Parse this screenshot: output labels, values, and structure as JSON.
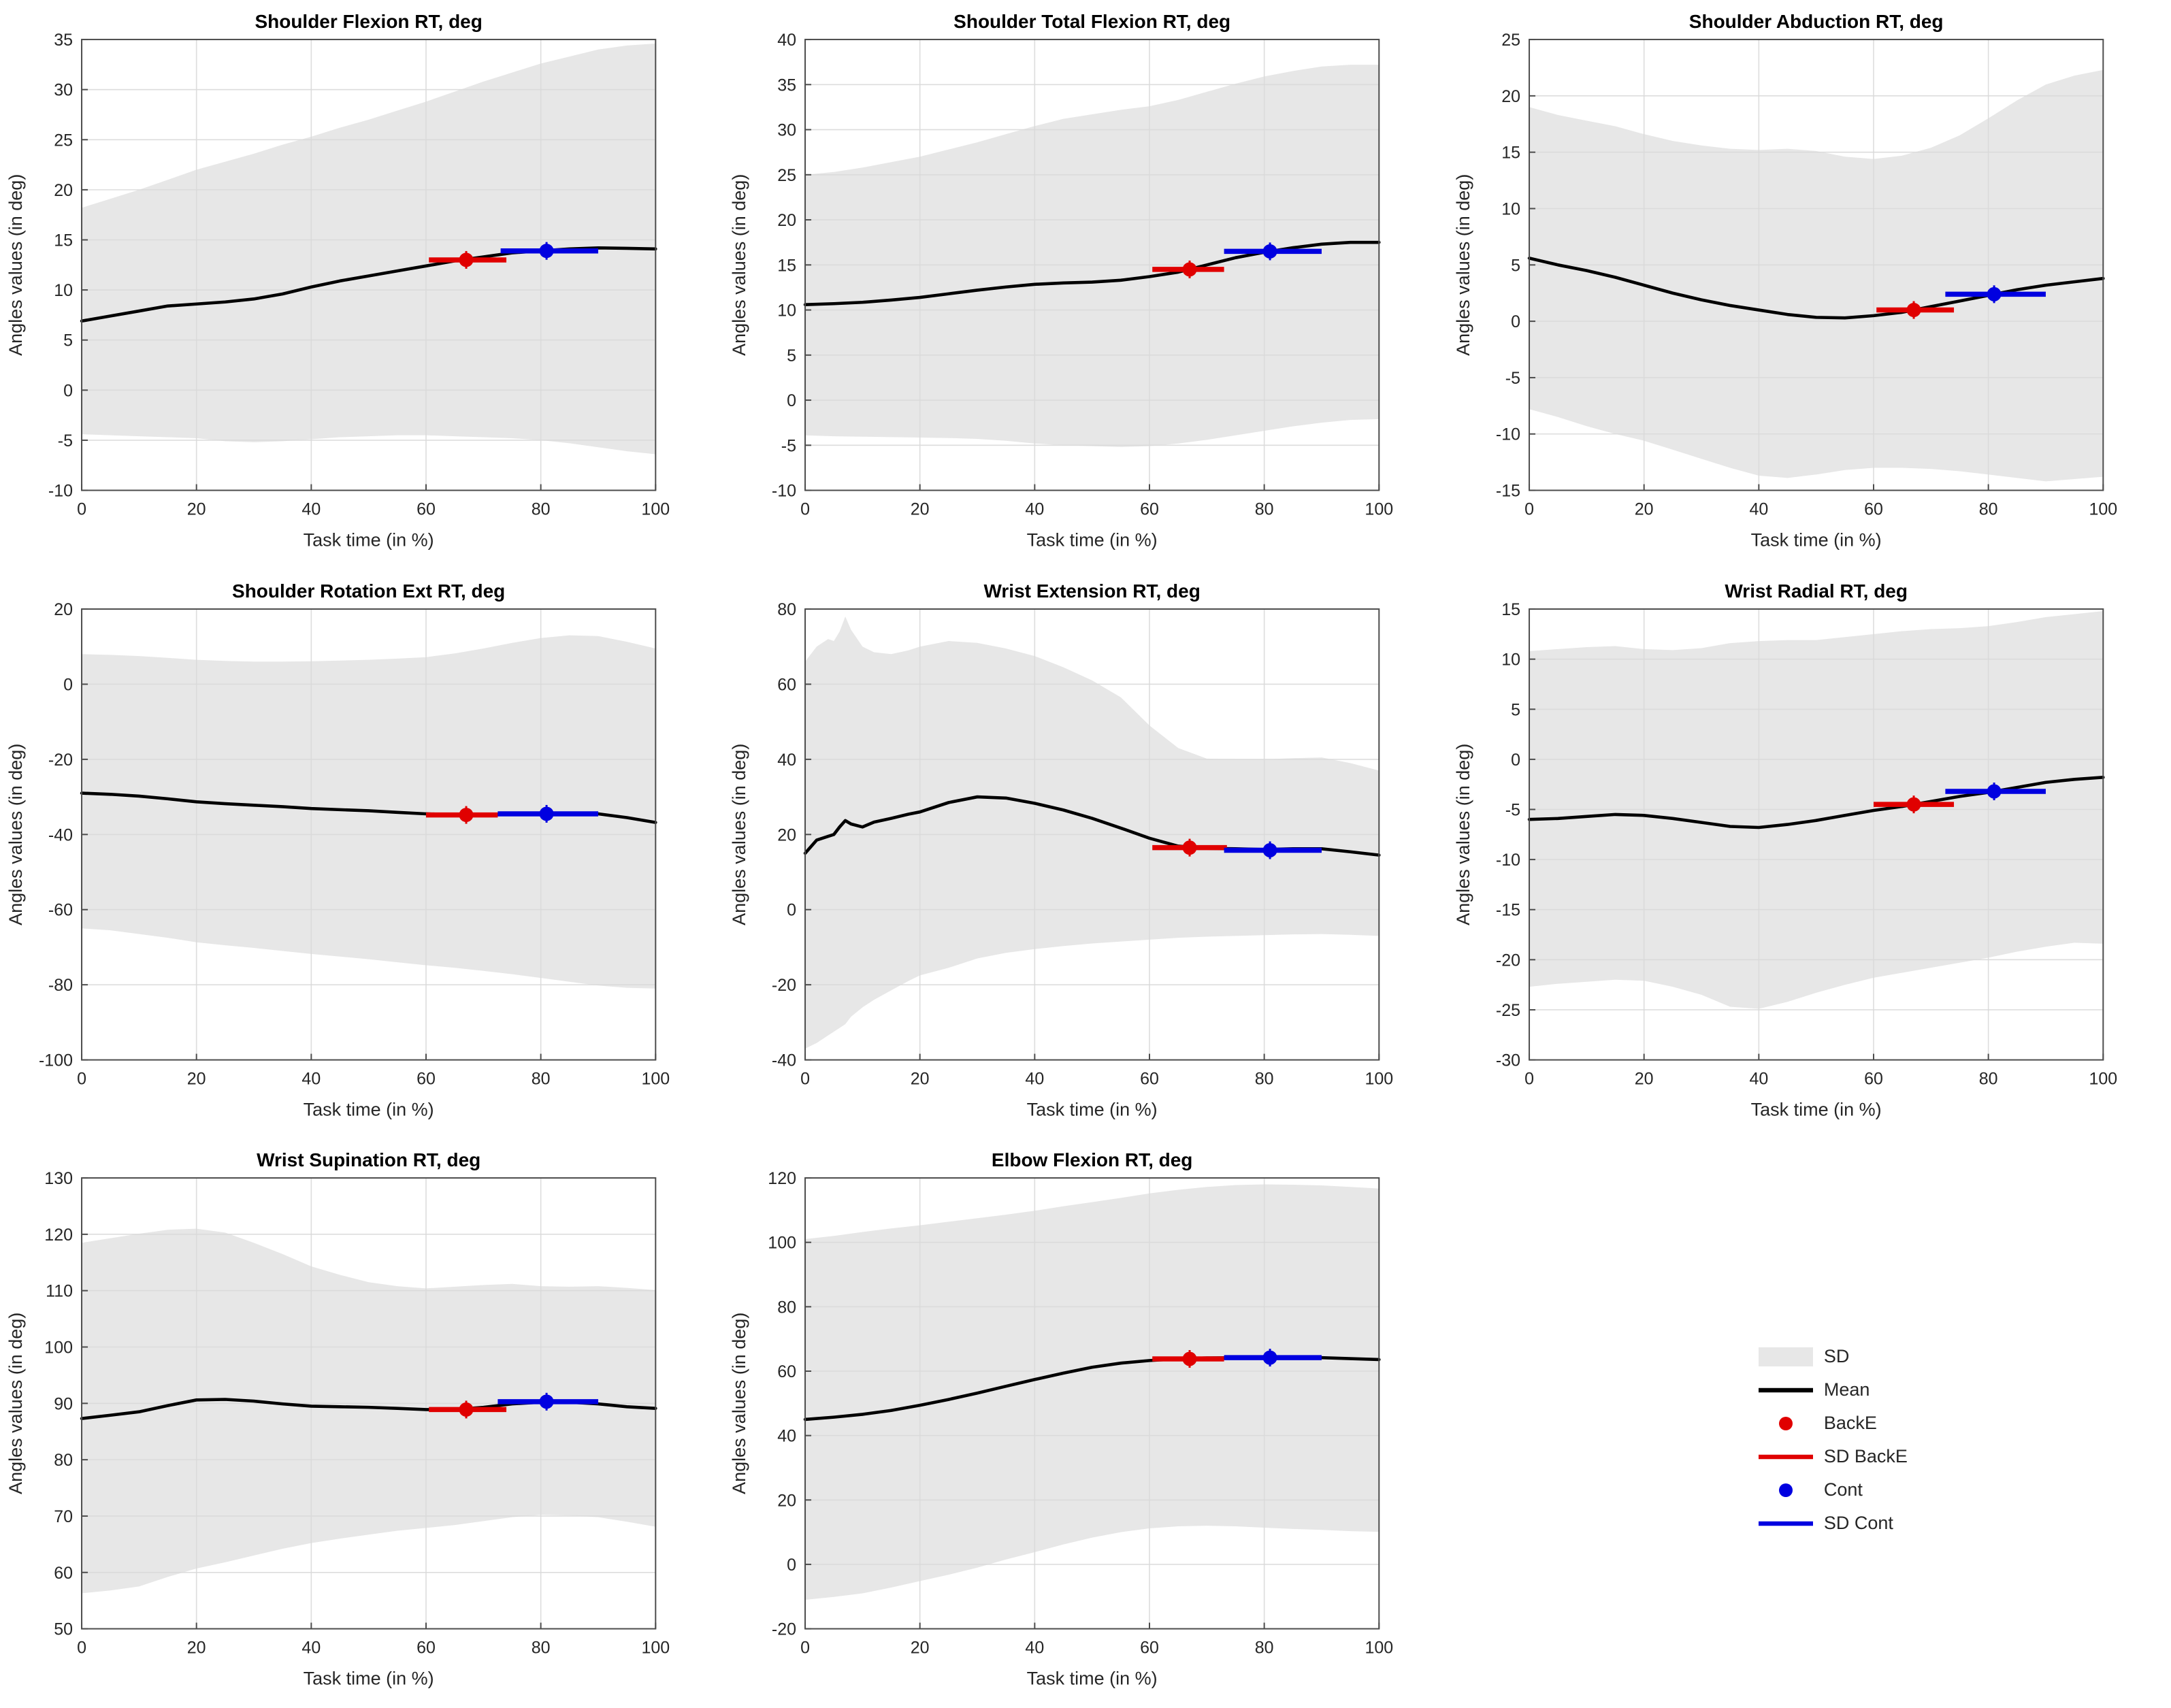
{
  "figure": {
    "background": "#ffffff"
  },
  "colors": {
    "band": "#e7e7e7",
    "mean": "#000000",
    "backe": "#e00000",
    "cont": "#0000e0",
    "grid": "#d9d9d9",
    "frame": "#4d4d4d",
    "text": "#262626"
  },
  "legend": {
    "items": [
      {
        "label": "SD",
        "swatch": "band"
      },
      {
        "label": "Mean",
        "swatch": "line",
        "color": "#000000"
      },
      {
        "label": "BackE",
        "swatch": "dot",
        "color": "#e00000"
      },
      {
        "label": "SD BackE",
        "swatch": "line",
        "color": "#e00000"
      },
      {
        "label": "Cont",
        "swatch": "dot",
        "color": "#0000e0"
      },
      {
        "label": "SD Cont",
        "swatch": "line",
        "color": "#0000e0"
      }
    ]
  },
  "chart_data": {
    "type": "line",
    "xlabel": "Task time (in %)",
    "ylabel": "Angles values (in deg)",
    "xlim": [
      0,
      100
    ],
    "xticks": [
      0,
      20,
      40,
      60,
      80,
      100
    ],
    "grid": true,
    "legend_entries": [
      "SD",
      "Mean",
      "BackE",
      "SD BackE",
      "Cont",
      "SD Cont"
    ],
    "plots": [
      {
        "title": "Shoulder Flexion RT, deg",
        "ylim": [
          -10,
          35
        ],
        "yticks": [
          -10,
          -5,
          0,
          5,
          10,
          15,
          20,
          25,
          30,
          35
        ],
        "x": [
          0,
          5,
          10,
          15,
          20,
          25,
          30,
          35,
          40,
          45,
          50,
          55,
          60,
          65,
          70,
          75,
          80,
          85,
          90,
          95,
          100
        ],
        "mean": [
          6.9,
          7.4,
          7.9,
          8.4,
          8.6,
          8.8,
          9.1,
          9.6,
          10.3,
          10.9,
          11.4,
          11.9,
          12.4,
          12.9,
          13.3,
          13.7,
          13.9,
          14.1,
          14.2,
          14.15,
          14.1
        ],
        "upper": [
          18.2,
          19.1,
          20,
          21,
          22,
          22.8,
          23.6,
          24.5,
          25.3,
          26.2,
          27,
          27.9,
          28.8,
          29.8,
          30.8,
          31.7,
          32.6,
          33.3,
          34,
          34.4,
          34.6
        ],
        "lower": [
          -4.4,
          -4.5,
          -4.6,
          -4.7,
          -4.8,
          -5.1,
          -5.2,
          -5.1,
          -4.9,
          -4.7,
          -4.6,
          -4.5,
          -4.5,
          -4.6,
          -4.7,
          -4.8,
          -5.0,
          -5.3,
          -5.7,
          -6.1,
          -6.4
        ],
        "backe": {
          "x": 67,
          "y": 13.0,
          "sd": [
            60.5,
            74
          ]
        },
        "cont": {
          "x": 81,
          "y": 13.9,
          "sd": [
            73,
            90
          ]
        }
      },
      {
        "title": "Shoulder Total Flexion RT, deg",
        "ylim": [
          -10,
          40
        ],
        "yticks": [
          -10,
          -5,
          0,
          5,
          10,
          15,
          20,
          25,
          30,
          35,
          40
        ],
        "x": [
          0,
          5,
          10,
          15,
          20,
          25,
          30,
          35,
          40,
          45,
          50,
          55,
          60,
          65,
          70,
          75,
          80,
          85,
          90,
          95,
          100
        ],
        "mean": [
          10.6,
          10.7,
          10.85,
          11.1,
          11.4,
          11.8,
          12.2,
          12.55,
          12.85,
          13.0,
          13.1,
          13.3,
          13.7,
          14.2,
          15.0,
          15.8,
          16.4,
          16.9,
          17.3,
          17.5,
          17.5
        ],
        "upper": [
          25,
          25.3,
          25.8,
          26.4,
          27,
          27.8,
          28.6,
          29.5,
          30.4,
          31.2,
          31.7,
          32.2,
          32.6,
          33.3,
          34.2,
          35.1,
          35.9,
          36.5,
          37,
          37.2,
          37.2
        ],
        "lower": [
          -3.9,
          -4.0,
          -4.05,
          -4.1,
          -4.15,
          -4.2,
          -4.3,
          -4.5,
          -4.8,
          -5.0,
          -5.1,
          -5.2,
          -5.1,
          -4.8,
          -4.4,
          -3.9,
          -3.4,
          -2.9,
          -2.5,
          -2.2,
          -2.1
        ],
        "backe": {
          "x": 67,
          "y": 14.5,
          "sd": [
            60.5,
            73
          ]
        },
        "cont": {
          "x": 81,
          "y": 16.5,
          "sd": [
            73,
            90
          ]
        }
      },
      {
        "title": "Shoulder Abduction RT, deg",
        "ylim": [
          -15,
          25
        ],
        "yticks": [
          -15,
          -10,
          -5,
          0,
          5,
          10,
          15,
          20,
          25
        ],
        "x": [
          0,
          5,
          10,
          15,
          20,
          25,
          30,
          35,
          40,
          45,
          50,
          55,
          60,
          65,
          70,
          75,
          80,
          85,
          90,
          95,
          100
        ],
        "mean": [
          5.6,
          5.0,
          4.5,
          3.9,
          3.2,
          2.5,
          1.9,
          1.4,
          1.0,
          0.6,
          0.35,
          0.3,
          0.5,
          0.8,
          1.3,
          1.8,
          2.3,
          2.8,
          3.2,
          3.5,
          3.8
        ],
        "upper": [
          19,
          18.3,
          17.8,
          17.3,
          16.6,
          16,
          15.6,
          15.3,
          15.2,
          15.3,
          15.1,
          14.6,
          14.4,
          14.7,
          15.4,
          16.5,
          18,
          19.6,
          21,
          21.8,
          22.3
        ],
        "lower": [
          -7.8,
          -8.5,
          -9.3,
          -10,
          -10.6,
          -11.4,
          -12.2,
          -13,
          -13.7,
          -13.9,
          -13.6,
          -13.2,
          -13.0,
          -13.0,
          -13.1,
          -13.3,
          -13.6,
          -13.9,
          -14.2,
          -14.0,
          -13.8
        ],
        "backe": {
          "x": 67,
          "y": 1.0,
          "sd": [
            60.5,
            74
          ]
        },
        "cont": {
          "x": 81,
          "y": 2.4,
          "sd": [
            72.5,
            90
          ]
        }
      },
      {
        "title": "Shoulder Rotation Ext RT, deg",
        "ylim": [
          -100,
          20
        ],
        "yticks": [
          -100,
          -80,
          -60,
          -40,
          -20,
          0,
          20
        ],
        "x": [
          0,
          5,
          10,
          15,
          20,
          25,
          30,
          35,
          40,
          45,
          50,
          55,
          60,
          65,
          70,
          75,
          80,
          85,
          90,
          95,
          100
        ],
        "mean": [
          -29,
          -29.3,
          -29.8,
          -30.5,
          -31.3,
          -31.8,
          -32.2,
          -32.6,
          -33.1,
          -33.4,
          -33.7,
          -34.1,
          -34.5,
          -34.7,
          -34.7,
          -34.6,
          -34.5,
          -34.4,
          -34.5,
          -35.5,
          -36.8
        ],
        "upper": [
          8,
          7.8,
          7.5,
          7,
          6.5,
          6.2,
          6,
          6,
          6.1,
          6.3,
          6.5,
          6.8,
          7.2,
          8.2,
          9.5,
          11,
          12.3,
          13,
          12.8,
          11.3,
          9.5
        ],
        "lower": [
          -65,
          -65.5,
          -66.5,
          -67.5,
          -68.7,
          -69.5,
          -70.2,
          -71,
          -71.8,
          -72.5,
          -73.2,
          -74,
          -74.8,
          -75.5,
          -76.3,
          -77.2,
          -78.2,
          -79.2,
          -80.2,
          -80.8,
          -81
        ],
        "backe": {
          "x": 67,
          "y": -34.8,
          "sd": [
            60,
            72.5
          ]
        },
        "cont": {
          "x": 81,
          "y": -34.5,
          "sd": [
            72.5,
            90
          ]
        }
      },
      {
        "title": "Wrist Extension RT, deg",
        "ylim": [
          -40,
          80
        ],
        "yticks": [
          -40,
          -20,
          0,
          20,
          40,
          60,
          80
        ],
        "x": [
          0,
          2,
          4,
          5,
          6,
          7,
          8,
          10,
          12,
          15,
          18,
          20,
          25,
          30,
          35,
          40,
          45,
          50,
          55,
          60,
          65,
          70,
          75,
          80,
          85,
          90,
          95,
          100
        ],
        "mean": [
          15,
          18.5,
          19.5,
          20,
          22,
          23.7,
          22.8,
          22,
          23.3,
          24.3,
          25.4,
          26,
          28.5,
          30,
          29.7,
          28.3,
          26.5,
          24.3,
          21.7,
          19,
          16.9,
          16.3,
          16.2,
          16.0,
          16.2,
          16.2,
          15.4,
          14.5
        ],
        "upper": [
          66,
          70,
          72,
          71.5,
          74,
          78,
          74.5,
          70,
          68.5,
          68,
          69,
          70,
          71.5,
          71,
          69.5,
          67.5,
          64.5,
          61,
          56.5,
          49,
          43,
          40.2,
          40,
          40,
          40.3,
          40.5,
          39,
          37
        ],
        "lower": [
          -37,
          -35.5,
          -33.5,
          -32.5,
          -31.5,
          -30.5,
          -28.5,
          -26,
          -24,
          -21.5,
          -19,
          -17.5,
          -15.5,
          -13,
          -11.5,
          -10.5,
          -9.7,
          -9,
          -8.5,
          -8,
          -7.5,
          -7.2,
          -7,
          -6.8,
          -6.6,
          -6.5,
          -6.7,
          -7
        ],
        "backe": {
          "x": 67,
          "y": 16.5,
          "sd": [
            60.5,
            73.5
          ]
        },
        "cont": {
          "x": 81,
          "y": 15.8,
          "sd": [
            73,
            90
          ]
        }
      },
      {
        "title": "Wrist Radial RT, deg",
        "ylim": [
          -30,
          15
        ],
        "yticks": [
          -30,
          -25,
          -20,
          -15,
          -10,
          -5,
          0,
          5,
          10,
          15
        ],
        "x": [
          0,
          5,
          10,
          15,
          20,
          25,
          30,
          35,
          40,
          45,
          50,
          55,
          60,
          65,
          70,
          75,
          80,
          85,
          90,
          95,
          100
        ],
        "mean": [
          -6.0,
          -5.9,
          -5.7,
          -5.5,
          -5.6,
          -5.9,
          -6.3,
          -6.7,
          -6.8,
          -6.5,
          -6.1,
          -5.6,
          -5.1,
          -4.7,
          -4.2,
          -3.7,
          -3.3,
          -2.8,
          -2.3,
          -2.0,
          -1.8
        ],
        "upper": [
          10.8,
          11.0,
          11.2,
          11.3,
          11.0,
          10.9,
          11.1,
          11.6,
          11.8,
          11.9,
          11.9,
          12.2,
          12.5,
          12.8,
          13.0,
          13.1,
          13.3,
          13.7,
          14.2,
          14.5,
          14.8
        ],
        "lower": [
          -22.7,
          -22.4,
          -22.2,
          -22.0,
          -22.1,
          -22.7,
          -23.5,
          -24.7,
          -24.9,
          -24.2,
          -23.3,
          -22.5,
          -21.8,
          -21.3,
          -20.8,
          -20.3,
          -19.8,
          -19.2,
          -18.7,
          -18.3,
          -18.4
        ],
        "backe": {
          "x": 67,
          "y": -4.5,
          "sd": [
            60,
            74
          ]
        },
        "cont": {
          "x": 81,
          "y": -3.2,
          "sd": [
            72.5,
            90
          ]
        }
      },
      {
        "title": "Wrist Supination RT, deg",
        "ylim": [
          50,
          130
        ],
        "yticks": [
          50,
          60,
          70,
          80,
          90,
          100,
          110,
          120,
          130
        ],
        "x": [
          0,
          5,
          10,
          15,
          20,
          25,
          30,
          35,
          40,
          45,
          50,
          55,
          60,
          65,
          70,
          75,
          80,
          85,
          90,
          95,
          100
        ],
        "mean": [
          87.3,
          87.9,
          88.5,
          89.6,
          90.6,
          90.7,
          90.4,
          89.9,
          89.5,
          89.4,
          89.3,
          89.1,
          88.9,
          88.9,
          89.3,
          89.9,
          90.2,
          90.2,
          89.9,
          89.4,
          89.1
        ],
        "upper": [
          118.5,
          119.3,
          120.1,
          120.8,
          121,
          120.3,
          118.5,
          116.5,
          114.3,
          112.8,
          111.5,
          110.8,
          110.4,
          110.7,
          111,
          111.2,
          110.8,
          110.7,
          110.8,
          110.5,
          110.1
        ],
        "lower": [
          56.3,
          56.8,
          57.5,
          59.2,
          60.7,
          61.8,
          63,
          64.2,
          65.2,
          66,
          66.7,
          67.4,
          67.9,
          68.4,
          69.1,
          69.8,
          70.2,
          70.1,
          69.8,
          69,
          68.1
        ],
        "backe": {
          "x": 67,
          "y": 88.9,
          "sd": [
            60.5,
            74
          ]
        },
        "cont": {
          "x": 81,
          "y": 90.3,
          "sd": [
            72.5,
            90
          ]
        }
      },
      {
        "title": "Elbow Flexion RT, deg",
        "ylim": [
          -20,
          120
        ],
        "yticks": [
          -20,
          0,
          20,
          40,
          60,
          80,
          100,
          120
        ],
        "x": [
          0,
          5,
          10,
          15,
          20,
          25,
          30,
          35,
          40,
          45,
          50,
          55,
          60,
          65,
          70,
          75,
          80,
          85,
          90,
          95,
          100
        ],
        "mean": [
          45,
          45.7,
          46.6,
          47.8,
          49.4,
          51.2,
          53.2,
          55.3,
          57.4,
          59.4,
          61.2,
          62.5,
          63.3,
          63.8,
          64.1,
          64.2,
          64.3,
          64.3,
          64.2,
          63.9,
          63.6
        ],
        "upper": [
          101,
          102,
          103.2,
          104.3,
          105.3,
          106.4,
          107.5,
          108.6,
          109.8,
          111.2,
          112.5,
          113.8,
          115.2,
          116.3,
          117.2,
          117.8,
          118,
          117.9,
          117.7,
          117.2,
          116.7
        ],
        "lower": [
          -11,
          -10.1,
          -9,
          -7.2,
          -5.2,
          -3.2,
          -1,
          1.5,
          3.8,
          6.2,
          8.3,
          10,
          11.2,
          11.8,
          12,
          11.8,
          11.4,
          11,
          10.7,
          10.3,
          10.1
        ],
        "backe": {
          "x": 67,
          "y": 63.8,
          "sd": [
            60.5,
            73
          ]
        },
        "cont": {
          "x": 81,
          "y": 64.2,
          "sd": [
            73,
            90
          ]
        }
      }
    ]
  }
}
